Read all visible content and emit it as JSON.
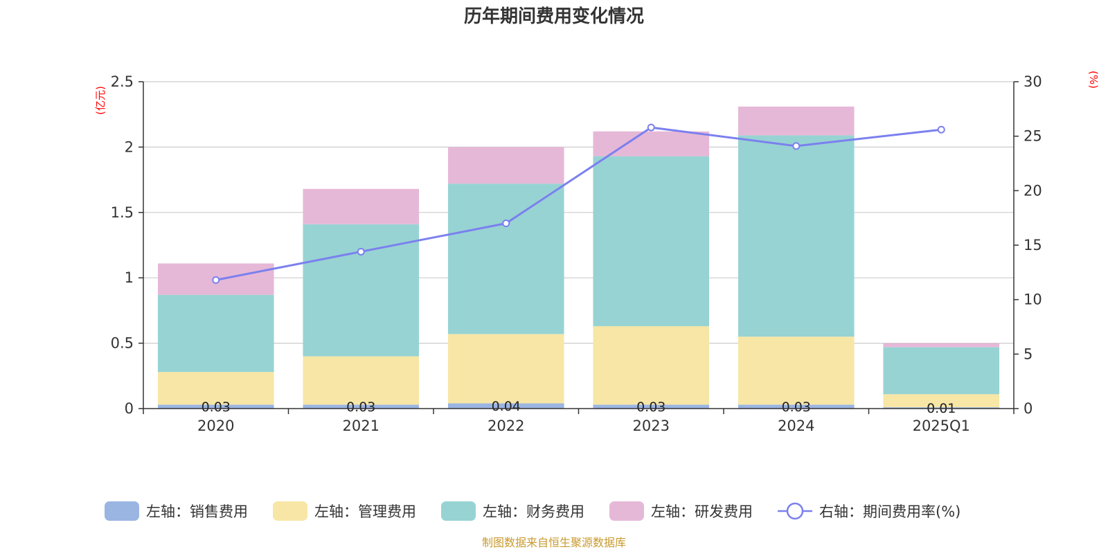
{
  "chart_data": {
    "type": "bar",
    "title": "历年期间费用变化情况",
    "categories": [
      "2020",
      "2021",
      "2022",
      "2023",
      "2024",
      "2025Q1"
    ],
    "stacked": true,
    "left_axis": {
      "unit": "(亿元)",
      "ylim": [
        0,
        2.5
      ],
      "ticks": [
        "0",
        "0.5",
        "1",
        "1.5",
        "2",
        "2.5"
      ]
    },
    "right_axis": {
      "unit": "(%)",
      "ylim": [
        0,
        30
      ],
      "ticks": [
        "0",
        "5",
        "10",
        "15",
        "20",
        "25",
        "30"
      ]
    },
    "series": [
      {
        "name": "左轴：销售费用",
        "axis": "left",
        "type": "bar",
        "color": "#9bb5e2",
        "values": [
          0.03,
          0.03,
          0.04,
          0.03,
          0.03,
          0.01
        ],
        "labels": [
          "0.03",
          "0.03",
          "0.04",
          "0.03",
          "0.03",
          "0.01"
        ]
      },
      {
        "name": "左轴：管理费用",
        "axis": "left",
        "type": "bar",
        "color": "#f7e6a6",
        "values": [
          0.25,
          0.37,
          0.53,
          0.6,
          0.52,
          0.1
        ]
      },
      {
        "name": "左轴：财务费用",
        "axis": "left",
        "type": "bar",
        "color": "#97d3d3",
        "values": [
          0.59,
          1.01,
          1.15,
          1.3,
          1.54,
          0.36
        ]
      },
      {
        "name": "左轴：研发费用",
        "axis": "left",
        "type": "bar",
        "color": "#e6b8d7",
        "values": [
          0.24,
          0.27,
          0.28,
          0.19,
          0.22,
          0.03
        ]
      },
      {
        "name": "右轴：期间费用率(%)",
        "axis": "right",
        "type": "line",
        "color": "#7b80ee",
        "values": [
          11.8,
          14.4,
          17.0,
          25.8,
          24.1,
          25.6
        ]
      }
    ],
    "grid": true,
    "legend_position": "bottom"
  },
  "source_note": "制图数据来自恒生聚源数据库"
}
